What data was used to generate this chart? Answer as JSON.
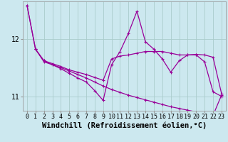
{
  "xlabel": "Windchill (Refroidissement éolien,°C)",
  "background_color": "#cce8ef",
  "grid_color": "#aacccc",
  "line_color": "#990099",
  "xlim": [
    -0.5,
    23.5
  ],
  "ylim": [
    10.75,
    12.65
  ],
  "yticks": [
    11,
    12
  ],
  "xticks": [
    0,
    1,
    2,
    3,
    4,
    5,
    6,
    7,
    8,
    9,
    10,
    11,
    12,
    13,
    14,
    15,
    16,
    17,
    18,
    19,
    20,
    21,
    22,
    23
  ],
  "line1_x": [
    0,
    1,
    2,
    3,
    4,
    5,
    6,
    7,
    8,
    9,
    10,
    11,
    12,
    13,
    14,
    15,
    16,
    17,
    18,
    19,
    20,
    21,
    22,
    23
  ],
  "line1_y": [
    12.58,
    11.82,
    11.6,
    11.55,
    11.48,
    11.4,
    11.32,
    11.25,
    11.1,
    10.93,
    11.55,
    11.78,
    12.1,
    12.48,
    11.95,
    11.82,
    11.65,
    11.42,
    11.62,
    11.72,
    11.72,
    11.6,
    11.08,
    11.0
  ],
  "line2_x": [
    1,
    2,
    3,
    4,
    5,
    6,
    7,
    8,
    9,
    10,
    11,
    12,
    13,
    14,
    15,
    16,
    17,
    18,
    19,
    20,
    21,
    22,
    23
  ],
  "line2_y": [
    11.82,
    11.62,
    11.57,
    11.52,
    11.46,
    11.42,
    11.38,
    11.33,
    11.28,
    11.65,
    11.7,
    11.72,
    11.75,
    11.78,
    11.78,
    11.78,
    11.75,
    11.72,
    11.72,
    11.73,
    11.72,
    11.68,
    11.05
  ],
  "line3_x": [
    0,
    1,
    2,
    3,
    4,
    5,
    6,
    7,
    8,
    9,
    10,
    11,
    12,
    13,
    14,
    15,
    16,
    17,
    18,
    19,
    20,
    21,
    22,
    23
  ],
  "line3_y": [
    12.58,
    11.82,
    11.62,
    11.55,
    11.5,
    11.44,
    11.38,
    11.32,
    11.25,
    11.18,
    11.12,
    11.07,
    11.02,
    10.98,
    10.94,
    10.9,
    10.86,
    10.82,
    10.79,
    10.76,
    10.73,
    10.7,
    10.67,
    11.02
  ],
  "tick_fontsize": 6,
  "xlabel_fontsize": 7.5
}
